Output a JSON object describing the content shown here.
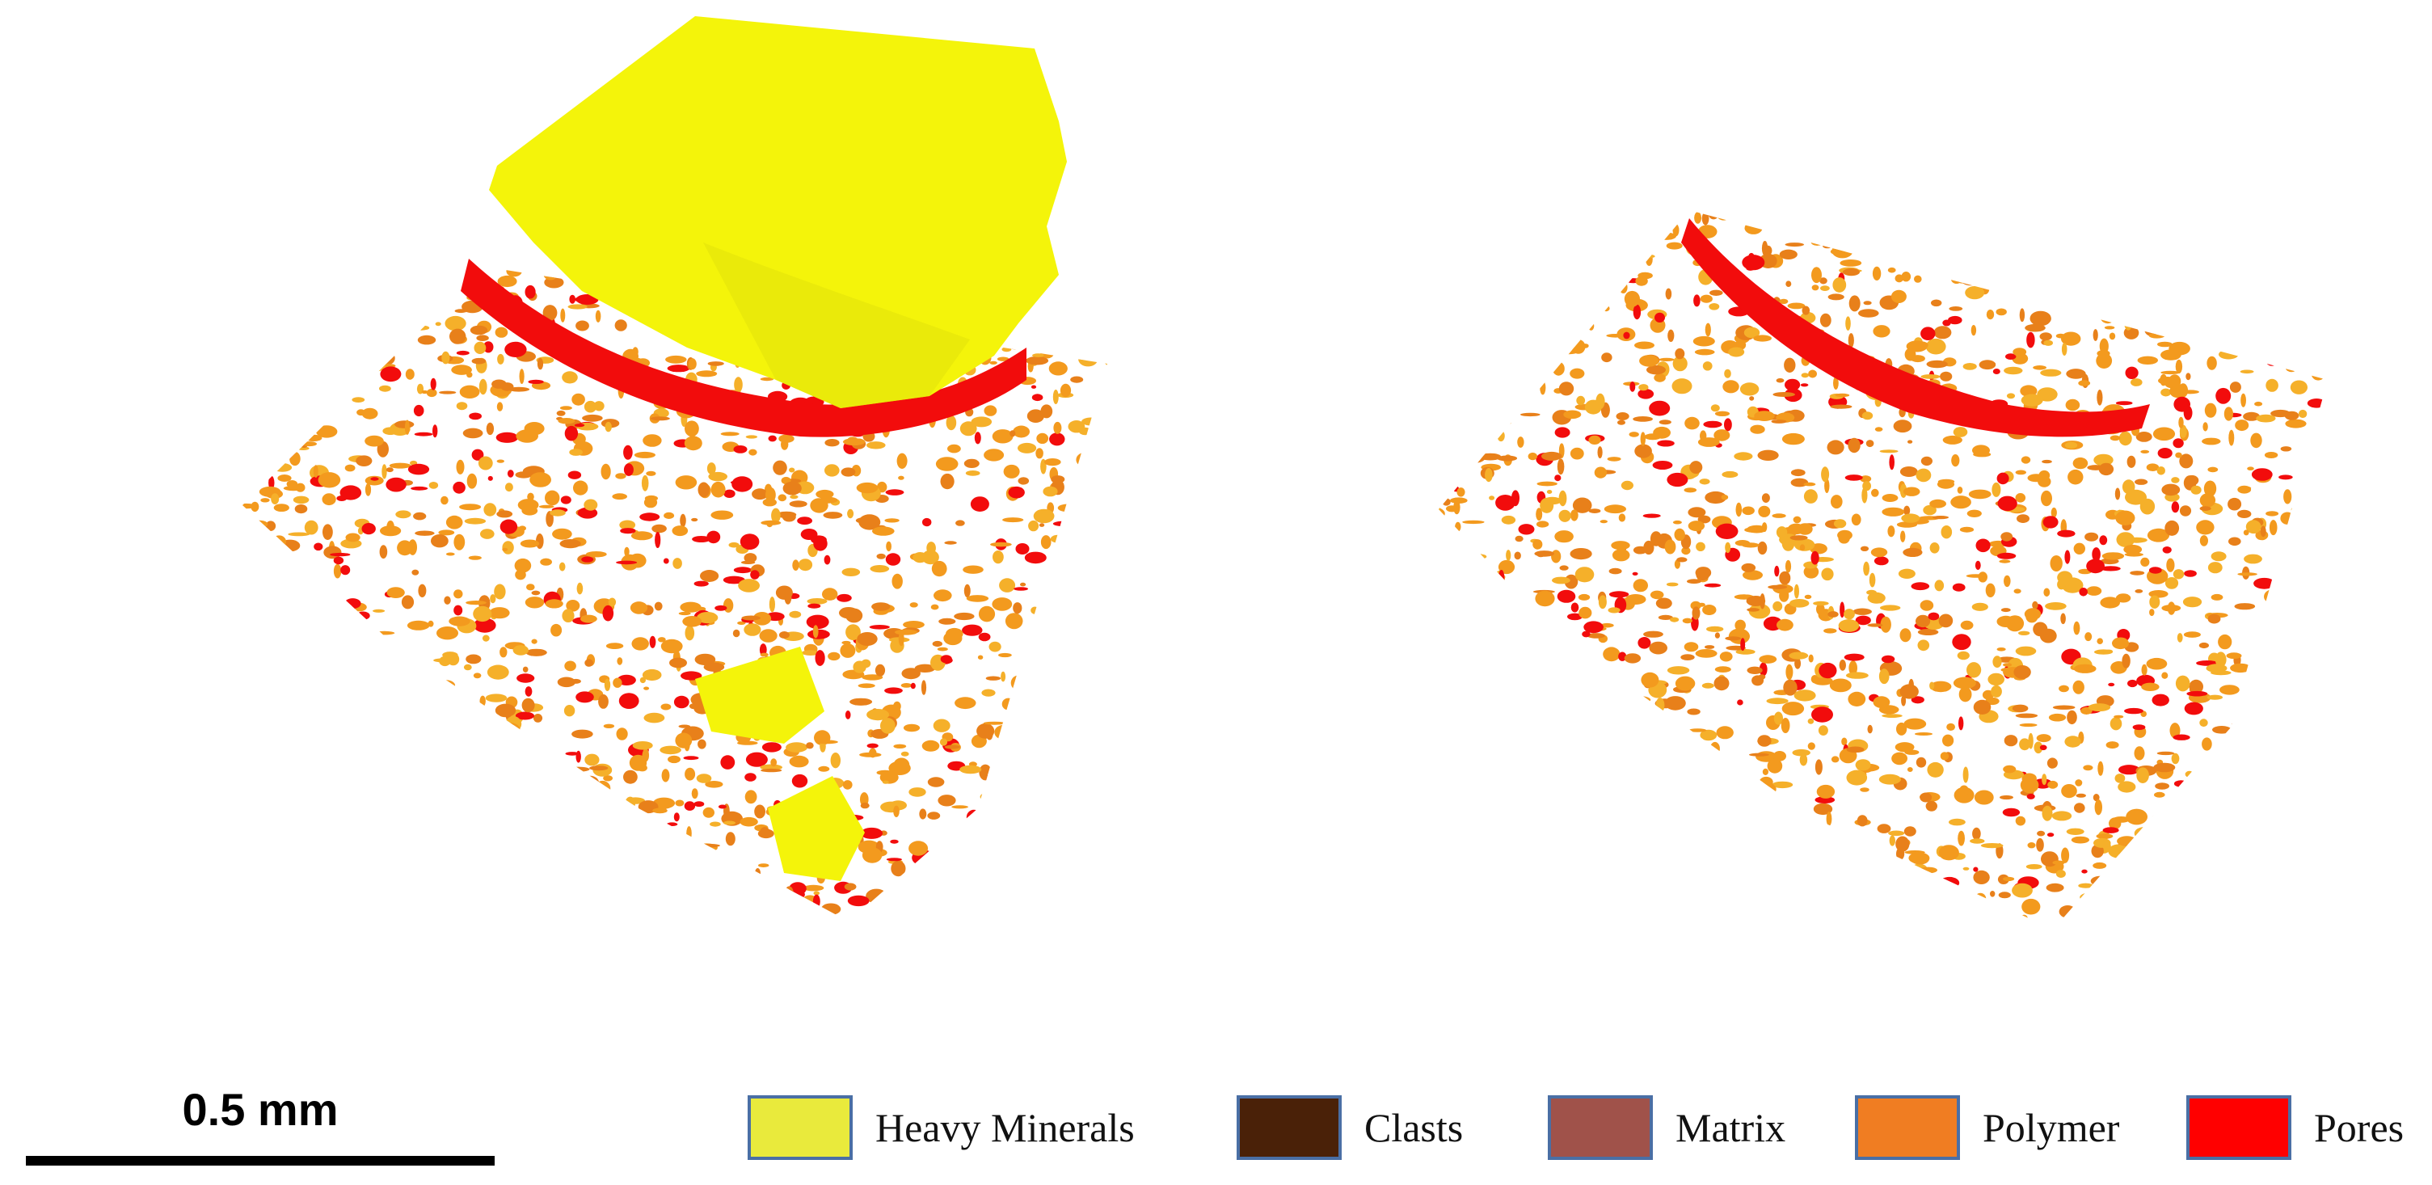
{
  "scale_bar": {
    "label": "0.5 mm"
  },
  "legend": {
    "items": [
      {
        "label": "Heavy Minerals",
        "color": "#e9ea3c"
      },
      {
        "label": "Clasts",
        "color": "#4a2108"
      },
      {
        "label": "Matrix",
        "color": "#a0524a"
      },
      {
        "label": "Polymer",
        "color": "#f07d22"
      },
      {
        "label": "Pores",
        "color": "#ff0000"
      }
    ]
  },
  "renders": {
    "left": {
      "phases": [
        "heavy-minerals",
        "polymer",
        "pores"
      ]
    },
    "right": {
      "phases": [
        "polymer",
        "pores"
      ]
    }
  },
  "colors": {
    "heavy_minerals": "#f4f40a",
    "polymer": "#f39a1e",
    "polymer_dark": "#e8801a",
    "pores": "#f20c0c"
  }
}
